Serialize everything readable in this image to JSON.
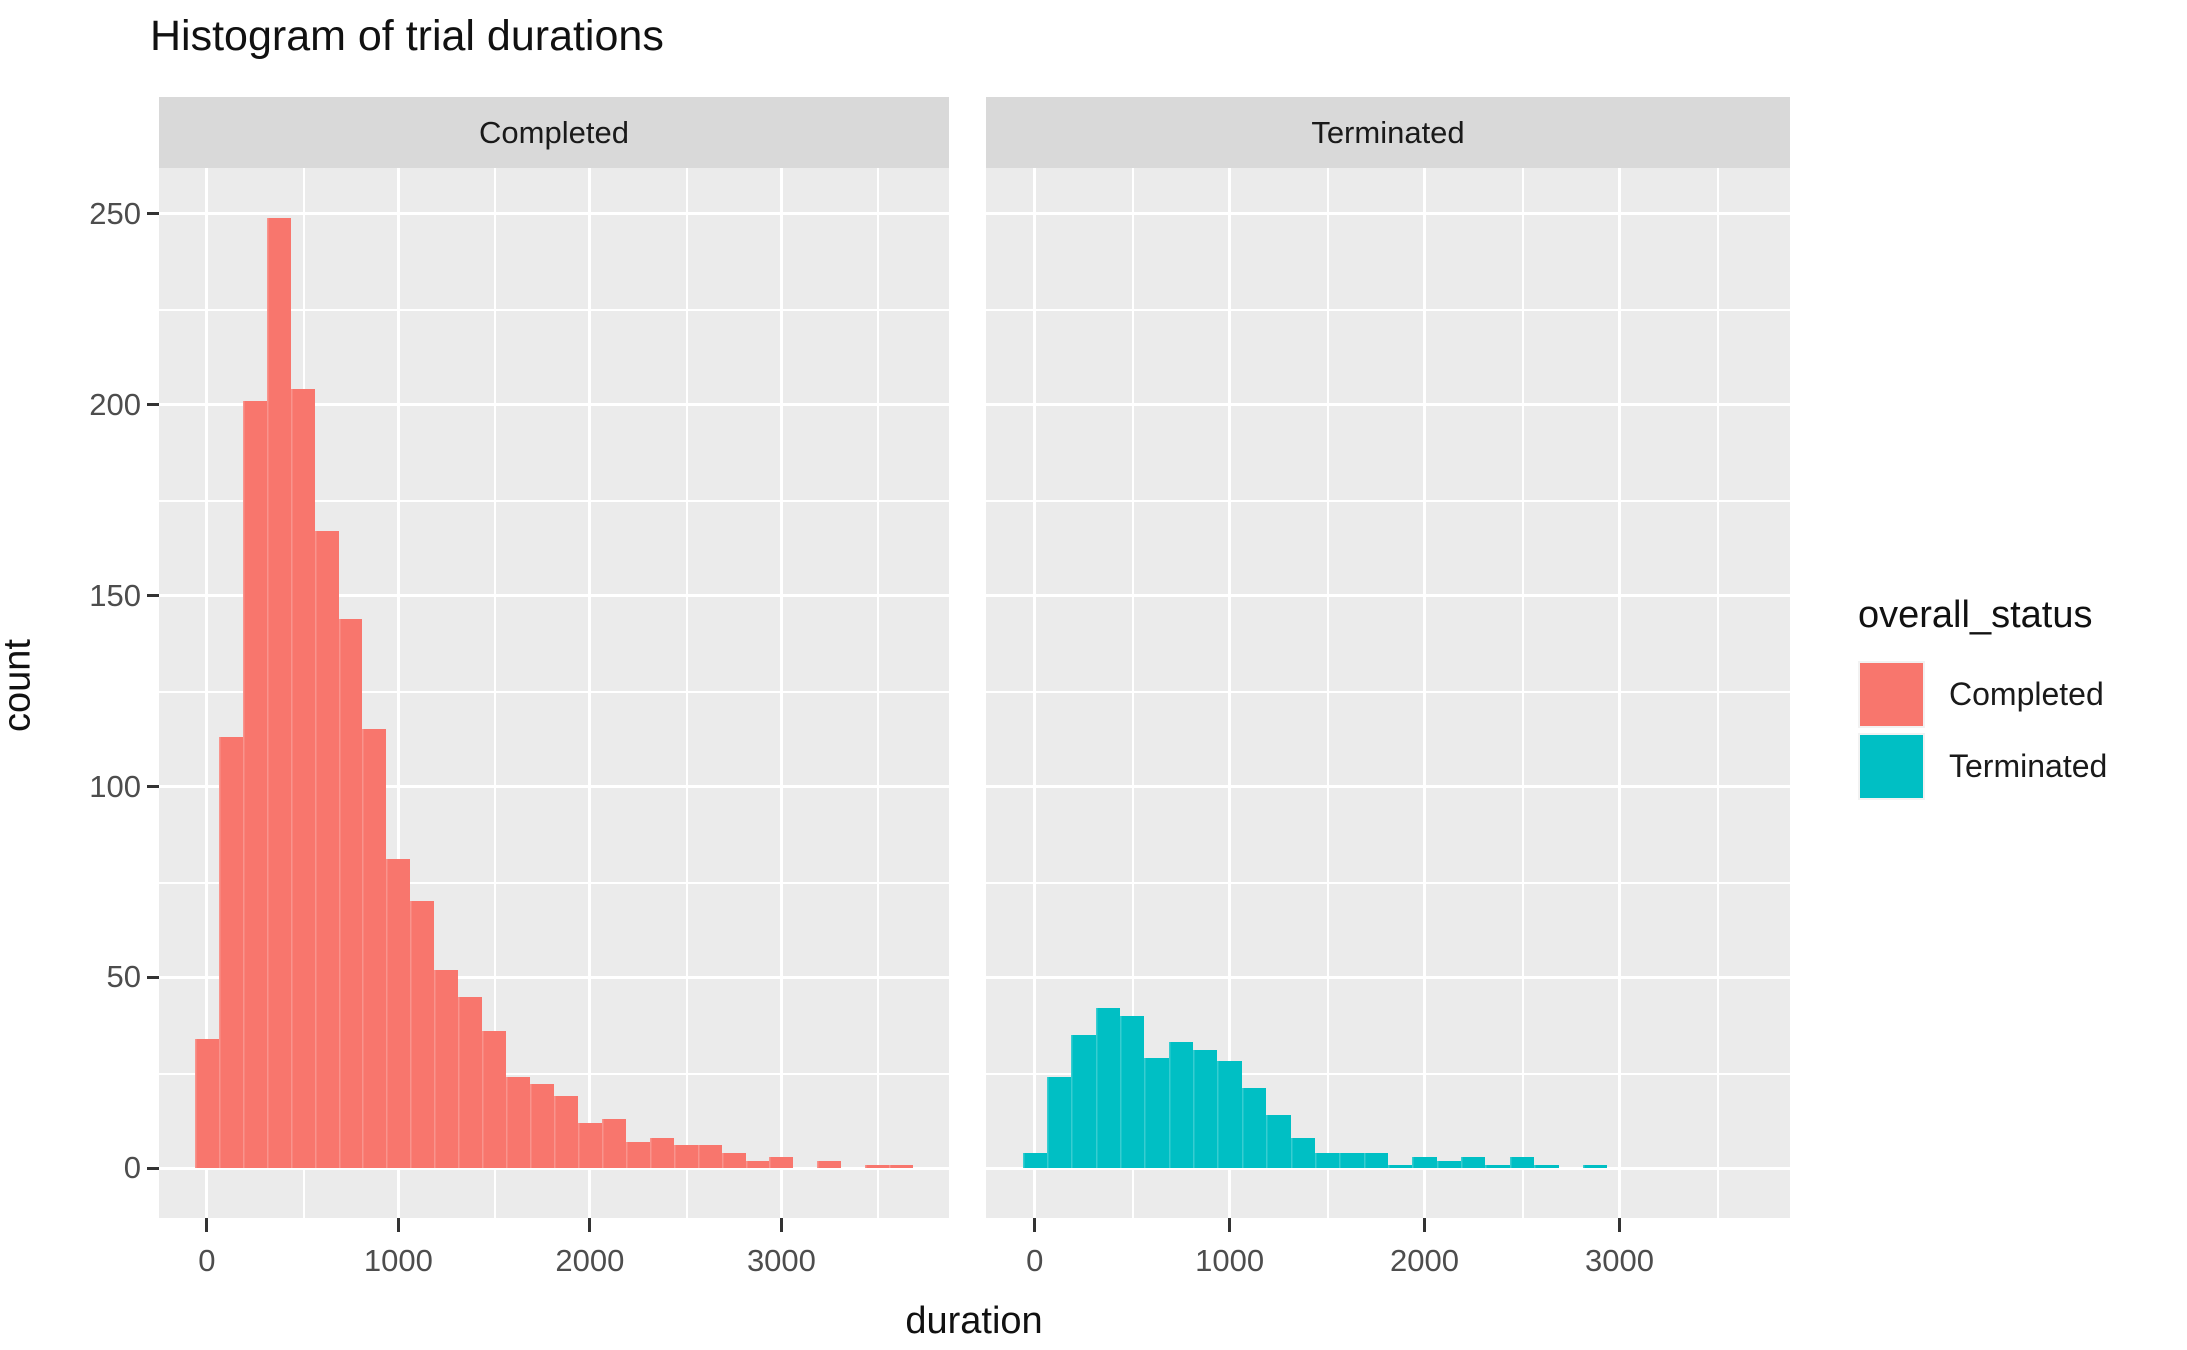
{
  "title": "Histogram of trial durations",
  "colors": {
    "completed": "#F8766D",
    "terminated": "#00BFC4",
    "panel_background": "#EBEBEB",
    "strip_background": "#D9D9D9",
    "gridline": "#FFFFFF",
    "axis_text": "#4D4D4D",
    "tick_mark": "#333333",
    "title_text": "#111111",
    "legend_key_background": "#F2F2F2"
  },
  "chart_data": {
    "type": "bar",
    "subtype": "faceted_histogram",
    "title": "Histogram of trial durations",
    "xlabel": "duration",
    "ylabel": "count",
    "legend_title": "overall_status",
    "legend_position": "right",
    "grid": true,
    "binwidth": 125,
    "xlim": [
      -250,
      3875
    ],
    "ylim": [
      -13,
      262
    ],
    "x_ticks": [
      0,
      1000,
      2000,
      3000
    ],
    "x_minor_gridlines": [
      500,
      1500,
      2500,
      3500
    ],
    "y_ticks": [
      0,
      50,
      100,
      150,
      200,
      250
    ],
    "y_minor_gridlines": [
      25,
      75,
      125,
      175,
      225
    ],
    "facets": [
      {
        "label": "Completed",
        "color": "#F8766D",
        "bin_centers": [
          0,
          125,
          250,
          375,
          500,
          625,
          750,
          875,
          1000,
          1125,
          1250,
          1375,
          1500,
          1625,
          1750,
          1875,
          2000,
          2125,
          2250,
          2375,
          2500,
          2625,
          2750,
          2875,
          3000,
          3125,
          3250,
          3375,
          3500,
          3625
        ],
        "counts": [
          34,
          113,
          201,
          249,
          204,
          167,
          144,
          115,
          81,
          70,
          52,
          45,
          36,
          24,
          22,
          19,
          12,
          13,
          7,
          8,
          6,
          6,
          4,
          2,
          3,
          0,
          2,
          0,
          1,
          1
        ]
      },
      {
        "label": "Terminated",
        "color": "#00BFC4",
        "bin_centers": [
          0,
          125,
          250,
          375,
          500,
          625,
          750,
          875,
          1000,
          1125,
          1250,
          1375,
          1500,
          1625,
          1750,
          1875,
          2000,
          2125,
          2250,
          2375,
          2500,
          2625,
          2750,
          2875
        ],
        "counts": [
          4,
          24,
          35,
          42,
          40,
          29,
          33,
          31,
          28,
          21,
          14,
          8,
          4,
          4,
          4,
          1,
          3,
          2,
          3,
          1,
          3,
          1,
          0,
          1
        ]
      }
    ]
  }
}
